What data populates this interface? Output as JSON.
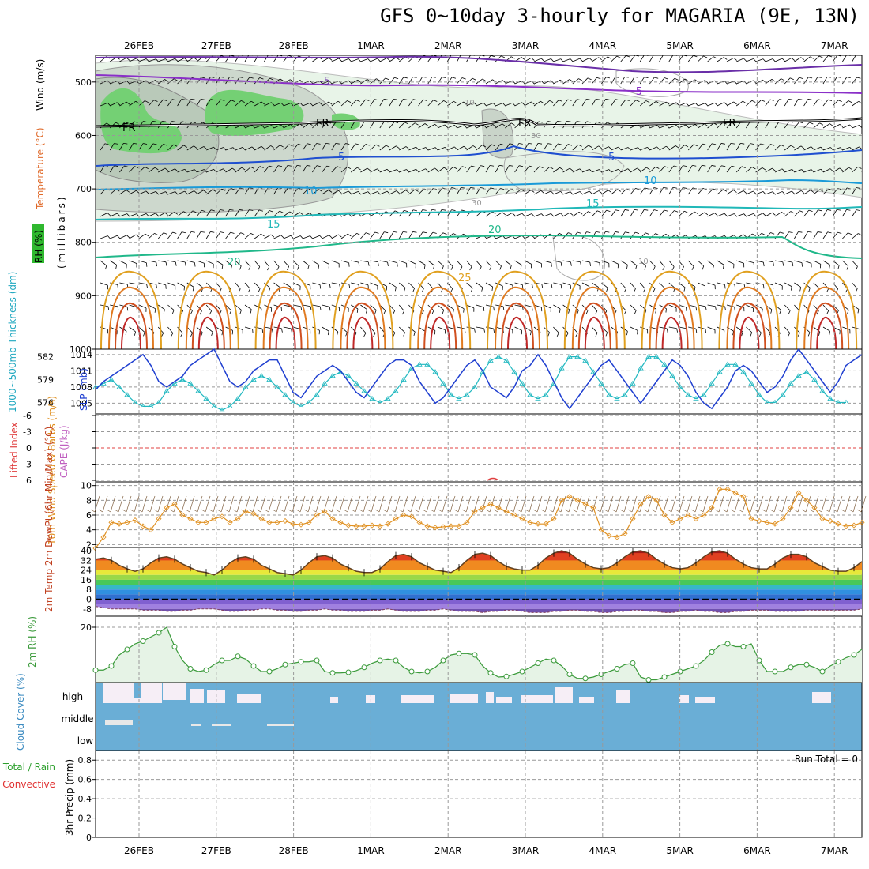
{
  "title": "GFS 0~10day 3-hourly for MAGARIA (9E, 13N)",
  "dates": [
    "26FEB",
    "27FEB",
    "28FEB",
    "1MAR",
    "2MAR",
    "3MAR",
    "4MAR",
    "5MAR",
    "6MAR",
    "7MAR"
  ],
  "colors": {
    "slp": "#1f3fd0",
    "thickness": "#20b8c0",
    "wind": "#e09020",
    "rh2m": "#3a9a3a",
    "rh2m_fill": "#e6f3e6",
    "cloud": "#6aaed6",
    "cape": "#c060c0",
    "li": "#e04040",
    "precip_total": "#2ea02e",
    "precip_conv": "#e03030"
  },
  "chart_data": [
    {
      "type": "line",
      "panel": "upper-air",
      "ylabel_parts": [
        "Temperature (°C)",
        "Wind (m/s)",
        "RH (%)"
      ],
      "yunit": "(millibars)",
      "yticks": [
        "500",
        "600",
        "700",
        "800",
        "900",
        "1000"
      ],
      "ylim": [
        1000,
        450
      ],
      "isotherm_labels": [
        "-5",
        "FR",
        "5",
        "10",
        "15",
        "20",
        "25",
        "10",
        "30",
        "30",
        "10"
      ]
    },
    {
      "type": "line",
      "panel": "slp-thickness",
      "ylabel_left": "1000~500mb Thickness (dm)",
      "ylabel_right": "SLP (mb)",
      "thickness_ticks": [
        "582",
        "579",
        "576"
      ],
      "slp_ticks": [
        "1014",
        "1011",
        "1008",
        "1005"
      ],
      "slp_ylim": [
        1003,
        1015
      ],
      "thickness_ylim": [
        574.5,
        583
      ],
      "series": [
        {
          "name": "SLP",
          "values": [
            1007.5,
            1009,
            1010,
            1011,
            1012,
            1013,
            1014,
            1012,
            1009,
            1008,
            1009,
            1010,
            1012,
            1013,
            1014,
            1015,
            1012,
            1009,
            1008,
            1009,
            1011,
            1012,
            1013,
            1013,
            1010,
            1007,
            1006,
            1008,
            1010,
            1011,
            1012,
            1011,
            1009,
            1007,
            1006,
            1008,
            1010,
            1012,
            1013,
            1013,
            1012,
            1009,
            1007,
            1005,
            1006,
            1008,
            1010,
            1012,
            1013,
            1011,
            1008,
            1007,
            1006,
            1008,
            1011,
            1012,
            1014,
            1012,
            1009,
            1006,
            1004,
            1006,
            1008,
            1010,
            1012,
            1013,
            1011,
            1009,
            1007,
            1005,
            1007,
            1009,
            1011,
            1013,
            1012,
            1010,
            1007,
            1005,
            1004,
            1006,
            1008,
            1011,
            1012,
            1011,
            1009,
            1007,
            1008,
            1010,
            1013,
            1015,
            1013,
            1011,
            1009,
            1007,
            1009,
            1012,
            1013,
            1014
          ]
        },
        {
          "name": "Thickness",
          "values": [
            578,
            578.5,
            579,
            578,
            577,
            576,
            575.5,
            575.5,
            576,
            577.5,
            578.5,
            579,
            578.5,
            577.5,
            576.5,
            575.5,
            575,
            575.5,
            576.5,
            578,
            579,
            579.5,
            579,
            578,
            577,
            576,
            575.5,
            576,
            577,
            578.5,
            579.5,
            580,
            579.5,
            578.5,
            577.5,
            576.5,
            576,
            576.5,
            577.5,
            579,
            580.5,
            581,
            581,
            580,
            578.5,
            577,
            576.5,
            577,
            578,
            580,
            581.5,
            582,
            581.5,
            580,
            578.5,
            577,
            576.5,
            577,
            578.5,
            580.5,
            582,
            582,
            581.5,
            580,
            578.5,
            577,
            576.5,
            577,
            578.5,
            580.5,
            582,
            582,
            581,
            579.5,
            578,
            577,
            576.5,
            577,
            578.5,
            580,
            581,
            581,
            580,
            578.5,
            577,
            576,
            576,
            577,
            578.5,
            579.5,
            580,
            579,
            577.5,
            576.5,
            576,
            576
          ]
        }
      ]
    },
    {
      "type": "line",
      "panel": "lifted-index-cape",
      "ylabel_left": "Lifted Index",
      "ylabel_right": "CAPE (J/kg)",
      "yticks": [
        "-6",
        "-3",
        "0",
        "3",
        "6"
      ],
      "ylim": [
        6,
        -6
      ]
    },
    {
      "type": "line",
      "panel": "10m-wind",
      "ylabel": "10m Wind Speed & Barbs (m/s)",
      "yticks": [
        "10",
        "8",
        "6",
        "4",
        "2"
      ],
      "ylim": [
        1.5,
        10.5
      ],
      "series": [
        {
          "name": "Speed",
          "values": [
            1.5,
            3,
            5,
            4.8,
            5,
            5.3,
            4.5,
            4,
            5.5,
            7,
            7.5,
            6,
            5.5,
            5,
            5,
            5.5,
            5.8,
            5,
            5.5,
            6.5,
            6.2,
            5.5,
            5,
            5,
            5.2,
            4.8,
            4.7,
            5,
            6,
            6.5,
            5.5,
            5,
            4.6,
            4.5,
            4.5,
            4.6,
            4.5,
            4.8,
            5.5,
            6,
            5.8,
            5,
            4.5,
            4.3,
            4.4,
            4.5,
            4.5,
            5,
            6.5,
            7,
            7.5,
            7,
            6.5,
            6,
            5.5,
            5,
            4.8,
            4.8,
            5.5,
            8,
            8.5,
            8,
            7.5,
            7,
            4,
            3.2,
            3,
            3.5,
            5.5,
            7.5,
            8.5,
            8,
            6,
            5,
            5.5,
            6,
            5.5,
            6,
            7,
            9.5,
            9.5,
            9,
            8.5,
            5.5,
            5.2,
            5,
            4.8,
            5.5,
            7,
            9,
            8,
            7,
            5.5,
            5.2,
            4.8,
            4.5,
            4.6,
            5
          ]
        }
      ]
    },
    {
      "type": "area",
      "panel": "2m-temp",
      "ylabel": "2m Temp 2m DewPt (6hr Min/Max) (°C)",
      "yticks": [
        "40",
        "32",
        "24",
        "16",
        "8",
        "0",
        "-8"
      ],
      "ylim": [
        -14,
        42
      ],
      "series": [
        {
          "name": "Temp",
          "values": [
            33,
            34,
            32,
            28,
            25,
            23,
            25,
            30,
            34,
            35,
            33,
            29,
            26,
            23,
            22,
            20,
            24,
            30,
            34,
            35,
            33,
            28,
            25,
            22,
            21,
            20,
            24,
            30,
            35,
            36,
            34,
            29,
            26,
            23,
            22,
            22,
            25,
            31,
            36,
            37,
            35,
            30,
            27,
            24,
            23,
            22,
            26,
            32,
            37,
            38,
            36,
            31,
            27,
            25,
            24,
            24,
            28,
            34,
            38,
            40,
            38,
            33,
            29,
            26,
            25,
            26,
            30,
            35,
            39,
            40,
            38,
            33,
            29,
            26,
            25,
            26,
            30,
            35,
            39,
            40,
            38,
            33,
            29,
            26,
            25,
            25,
            29,
            34,
            37,
            37,
            35,
            30,
            27,
            24,
            23,
            23,
            26,
            31
          ]
        },
        {
          "name": "DewPt",
          "values": [
            -6,
            -7,
            -8,
            -8,
            -8,
            -8,
            -9,
            -9,
            -9,
            -10,
            -10,
            -9,
            -9,
            -8,
            -8,
            -8,
            -9,
            -10,
            -10,
            -9,
            -9,
            -8,
            -8,
            -9,
            -9,
            -10,
            -10,
            -9,
            -9,
            -8,
            -9,
            -9,
            -10,
            -10,
            -10,
            -9,
            -9,
            -8,
            -9,
            -10,
            -10,
            -10,
            -9,
            -9,
            -8,
            -9,
            -10,
            -10,
            -10,
            -11,
            -10,
            -10,
            -9,
            -9,
            -10,
            -11,
            -11,
            -11,
            -10,
            -10,
            -9,
            -9,
            -10,
            -10,
            -11,
            -11,
            -10,
            -10,
            -9,
            -9,
            -10,
            -10,
            -11,
            -11,
            -10,
            -10,
            -9,
            -10,
            -10,
            -11,
            -11,
            -10,
            -10,
            -9,
            -9,
            -9,
            -10,
            -10,
            -10,
            -10,
            -9,
            -9,
            -9,
            -9,
            -9,
            -9,
            -9,
            -8
          ]
        }
      ]
    },
    {
      "type": "line",
      "panel": "2m-rh",
      "ylabel": "2m RH (%)",
      "yticks": [
        "20"
      ],
      "ylim": [
        0,
        24
      ],
      "series": [
        {
          "name": "RH",
          "values": [
            4.5,
            4.5,
            6,
            10,
            12,
            14,
            15,
            16.5,
            18,
            20,
            13,
            8,
            5,
            4,
            4.5,
            6.5,
            8,
            8,
            9.5,
            8.5,
            6,
            4,
            4,
            5,
            6.5,
            7,
            7.5,
            7.5,
            8,
            4,
            3.5,
            3.5,
            3.7,
            4.3,
            5.5,
            7,
            8,
            8.5,
            8,
            5.5,
            4,
            3.5,
            4,
            5.5,
            8,
            10,
            10.5,
            10.5,
            10,
            6,
            3.5,
            2,
            2.2,
            3,
            4,
            5.5,
            7,
            8.5,
            8,
            6,
            3,
            1.5,
            1.5,
            2,
            3,
            4,
            5,
            6.5,
            7,
            2,
            1,
            1,
            2,
            3,
            4,
            5,
            6,
            8,
            11,
            13.5,
            14,
            13,
            13,
            14,
            8,
            4,
            4,
            4,
            5.5,
            6.5,
            6.5,
            5.5,
            4,
            6,
            7.5,
            9,
            10,
            12
          ]
        }
      ]
    },
    {
      "type": "bar",
      "panel": "cloud-cover",
      "ylabel": "Cloud Cover (%)",
      "levels": [
        "high",
        "middle",
        "low"
      ]
    },
    {
      "type": "bar",
      "panel": "precip",
      "ylabel": "3hr Precip (mm)",
      "ylabel_series": [
        "Total / Rain",
        "Convective"
      ],
      "yticks": [
        "0.8",
        "0.6",
        "0.4",
        "0.2",
        "0"
      ],
      "ylim": [
        0,
        0.9
      ],
      "run_total": "Run Total = 0",
      "series": [
        {
          "name": "Total / Rain",
          "values": []
        },
        {
          "name": "Convective",
          "values": []
        }
      ]
    }
  ]
}
